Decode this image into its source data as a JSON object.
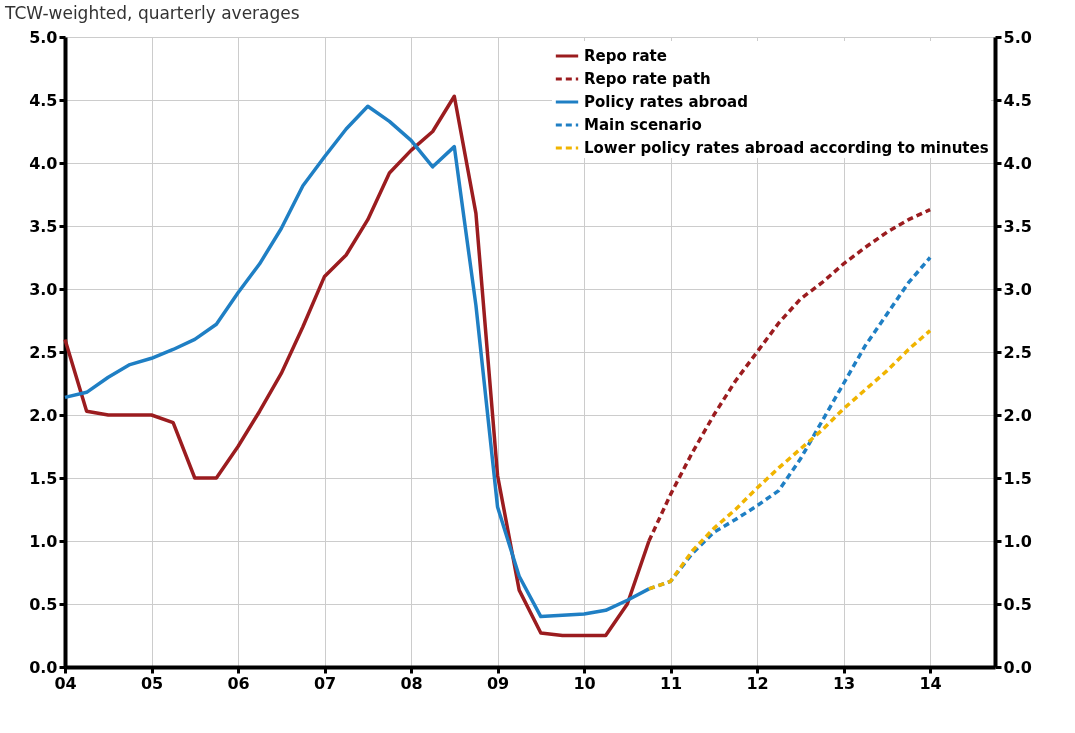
{
  "chart_data": {
    "type": "line",
    "title": "TCW-weighted, quarterly averages",
    "xlim": [
      2004,
      2014.75
    ],
    "xticks": [
      {
        "value": 2004,
        "label": "04"
      },
      {
        "value": 2005,
        "label": "05"
      },
      {
        "value": 2006,
        "label": "06"
      },
      {
        "value": 2007,
        "label": "07"
      },
      {
        "value": 2008,
        "label": "08"
      },
      {
        "value": 2009,
        "label": "09"
      },
      {
        "value": 2010,
        "label": "10"
      },
      {
        "value": 2011,
        "label": "11"
      },
      {
        "value": 2012,
        "label": "12"
      },
      {
        "value": 2013,
        "label": "13"
      },
      {
        "value": 2014,
        "label": "14"
      }
    ],
    "ylim": [
      0,
      5
    ],
    "yticks": [
      {
        "value": 0,
        "label": "0.0"
      },
      {
        "value": 0.5,
        "label": "0.5"
      },
      {
        "value": 1,
        "label": "1.0"
      },
      {
        "value": 1.5,
        "label": "1.5"
      },
      {
        "value": 2,
        "label": "2.0"
      },
      {
        "value": 2.5,
        "label": "2.5"
      },
      {
        "value": 3,
        "label": "3.0"
      },
      {
        "value": 3.5,
        "label": "3.5"
      },
      {
        "value": 4,
        "label": "4.0"
      },
      {
        "value": 4.5,
        "label": "4.5"
      },
      {
        "value": 5,
        "label": "5.0"
      }
    ],
    "y2lim": [
      0,
      5
    ],
    "y2ticks": [
      {
        "value": 0,
        "label": "0.0"
      },
      {
        "value": 0.5,
        "label": "0.5"
      },
      {
        "value": 1,
        "label": "1.0"
      },
      {
        "value": 1.5,
        "label": "1.5"
      },
      {
        "value": 2,
        "label": "2.0"
      },
      {
        "value": 2.5,
        "label": "2.5"
      },
      {
        "value": 3,
        "label": "3.0"
      },
      {
        "value": 3.5,
        "label": "3.5"
      },
      {
        "value": 4,
        "label": "4.0"
      },
      {
        "value": 4.5,
        "label": "4.5"
      },
      {
        "value": 5,
        "label": "5.0"
      }
    ],
    "grid": true,
    "legend": "top right",
    "marker": "none",
    "series": [
      {
        "name": "Repo rate",
        "color": "#9b1c1f",
        "line_style": "solid",
        "x": [
          2004,
          2004.25,
          2004.5,
          2004.75,
          2005,
          2005.25,
          2005.5,
          2005.75,
          2006,
          2006.25,
          2006.5,
          2006.75,
          2007,
          2007.25,
          2007.5,
          2007.75,
          2008,
          2008.25,
          2008.5,
          2008.75,
          2009,
          2009.25,
          2009.5,
          2009.75,
          2010,
          2010.25,
          2010.5,
          2010.75
        ],
        "values": [
          2.6,
          2.03,
          2.0,
          2.0,
          2.0,
          1.94,
          1.5,
          1.5,
          1.75,
          2.03,
          2.33,
          2.7,
          3.1,
          3.27,
          3.55,
          3.92,
          4.1,
          4.25,
          4.53,
          3.6,
          1.52,
          0.61,
          0.27,
          0.25,
          0.25,
          0.25,
          0.5,
          1.0
        ]
      },
      {
        "name": "Repo rate path",
        "color": "#9b1c1f",
        "line_style": "dashed",
        "x": [
          2010.75,
          2011,
          2011.25,
          2011.5,
          2011.75,
          2012,
          2012.25,
          2012.5,
          2012.75,
          2013,
          2013.25,
          2013.5,
          2013.75,
          2014
        ],
        "values": [
          1.0,
          1.37,
          1.7,
          2.0,
          2.27,
          2.5,
          2.73,
          2.92,
          3.05,
          3.2,
          3.33,
          3.45,
          3.55,
          3.63
        ]
      },
      {
        "name": "Policy rates abroad",
        "color": "#1f7fc4",
        "line_style": "solid",
        "x": [
          2004,
          2004.25,
          2004.5,
          2004.75,
          2005,
          2005.25,
          2005.5,
          2005.75,
          2006,
          2006.25,
          2006.5,
          2006.75,
          2007,
          2007.25,
          2007.5,
          2007.75,
          2008,
          2008.25,
          2008.5,
          2008.75,
          2009,
          2009.25,
          2009.5,
          2009.75,
          2010,
          2010.25,
          2010.5,
          2010.75
        ],
        "values": [
          2.14,
          2.18,
          2.3,
          2.4,
          2.45,
          2.52,
          2.6,
          2.72,
          2.97,
          3.2,
          3.48,
          3.82,
          4.05,
          4.27,
          4.45,
          4.33,
          4.18,
          3.97,
          4.13,
          2.87,
          1.27,
          0.72,
          0.4,
          0.41,
          0.42,
          0.45,
          0.53,
          0.62
        ]
      },
      {
        "name": "Main scenario",
        "color": "#1f7fc4",
        "line_style": "dashed",
        "x": [
          2010.75,
          2011,
          2011.25,
          2011.5,
          2011.75,
          2012,
          2012.25,
          2012.5,
          2012.75,
          2013,
          2013.25,
          2013.5,
          2013.75,
          2014
        ],
        "values": [
          0.62,
          0.68,
          0.9,
          1.07,
          1.17,
          1.28,
          1.4,
          1.65,
          1.95,
          2.25,
          2.55,
          2.8,
          3.05,
          3.25
        ]
      },
      {
        "name": "Lower policy rates abroad according to minutes",
        "color": "#f0b400",
        "line_style": "dashed",
        "x": [
          2010.75,
          2011,
          2011.25,
          2011.5,
          2011.75,
          2012,
          2012.25,
          2012.5,
          2012.75,
          2013,
          2013.25,
          2013.5,
          2013.75,
          2014
        ],
        "values": [
          0.62,
          0.68,
          0.92,
          1.1,
          1.25,
          1.42,
          1.58,
          1.73,
          1.88,
          2.05,
          2.2,
          2.35,
          2.52,
          2.67
        ]
      }
    ]
  }
}
